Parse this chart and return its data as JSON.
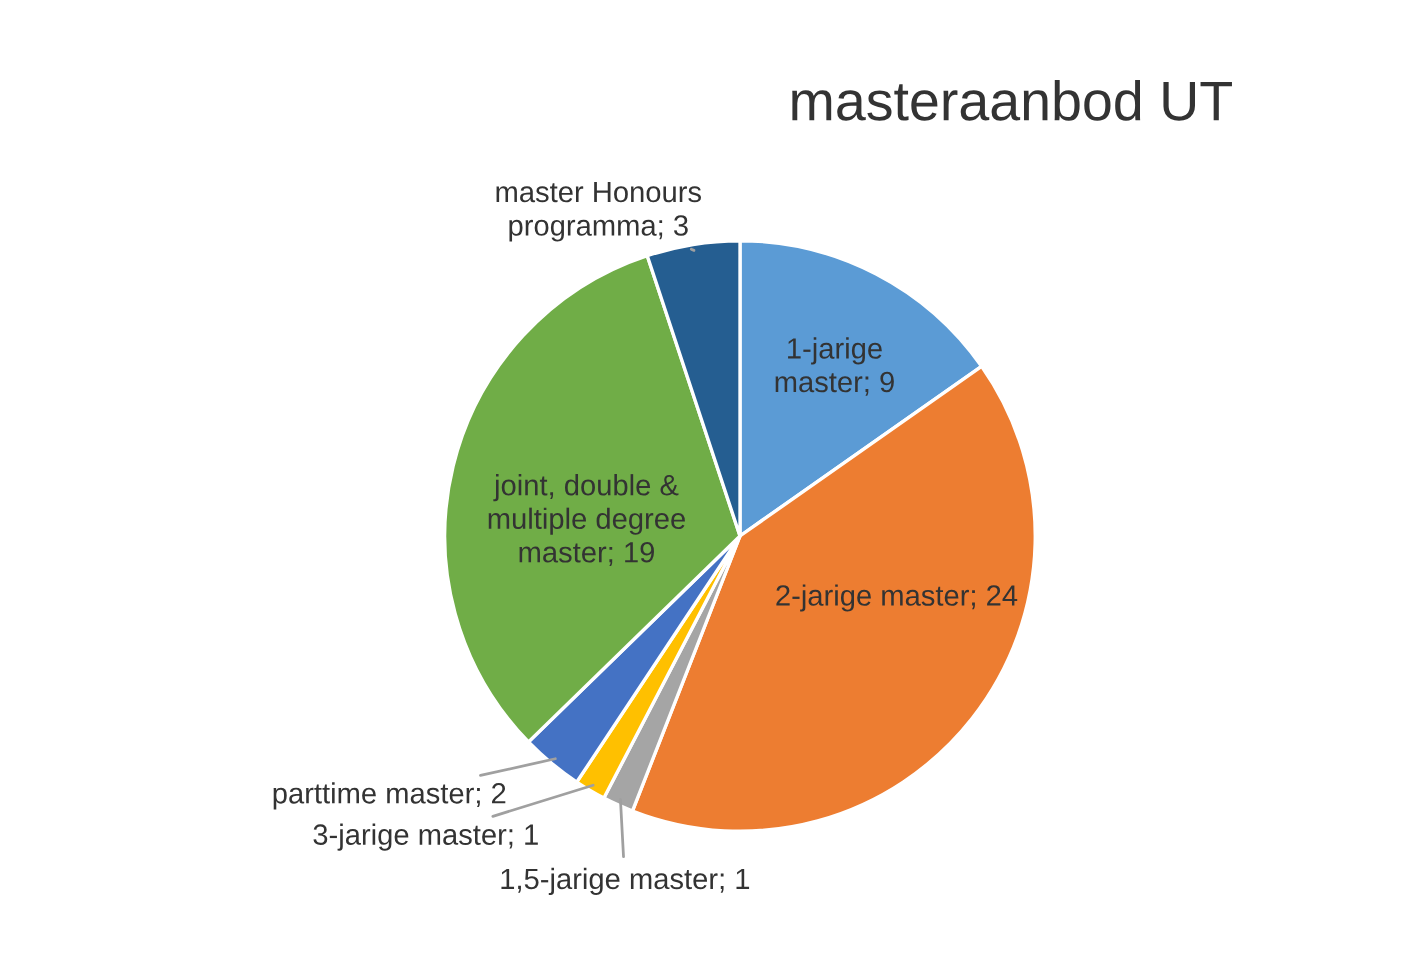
{
  "chart_data": {
    "type": "pie",
    "title": "masteraanbod UT",
    "categories": [
      "1-jarige master; 9",
      "2-jarige master; 24",
      "1,5-jarige master; 1",
      "3-jarige master; 1",
      "parttime master; 2",
      "joint, double & multiple degree master; 19",
      "master Honours programma; 3"
    ],
    "values": [
      9,
      24,
      1,
      1,
      2,
      19,
      3
    ],
    "colors": [
      "#5b9bd5",
      "#ed7d31",
      "#a5a5a5",
      "#ffc000",
      "#4472c4",
      "#70ad47",
      "#255e91"
    ],
    "legend": false
  }
}
